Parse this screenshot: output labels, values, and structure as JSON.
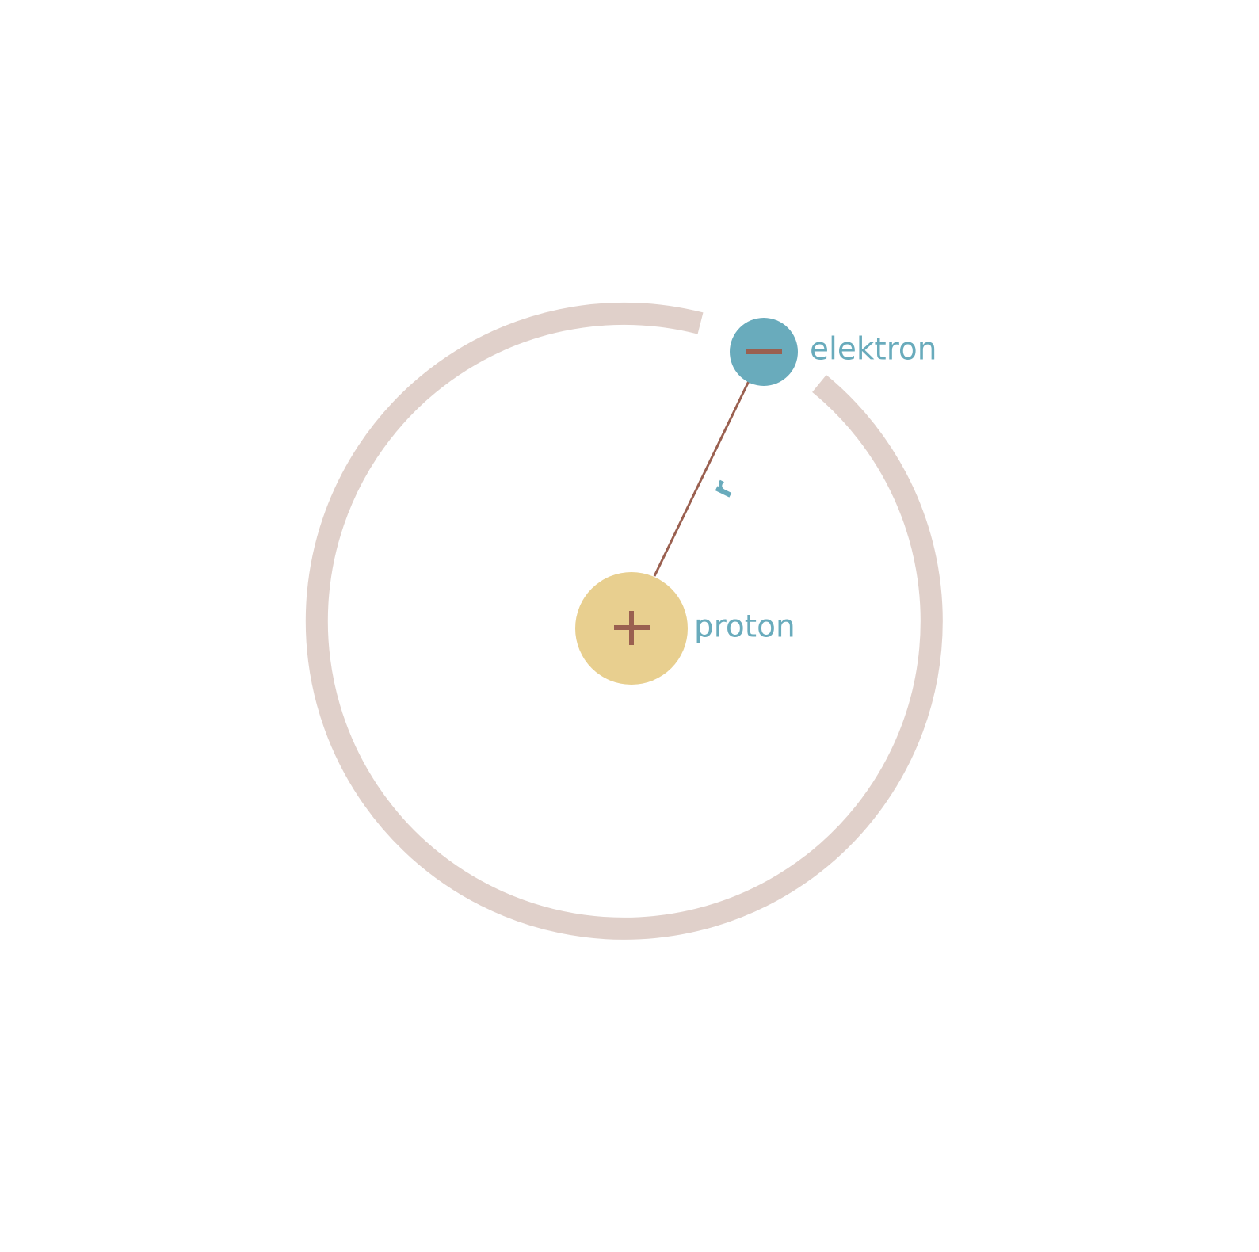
{
  "diagram": {
    "electron_label": "elektron",
    "proton_label": "proton",
    "radius_label": "r",
    "electron_sign": "−",
    "proton_sign": "+"
  },
  "colors": {
    "background": "#ffffff",
    "orbit": "#e0d0ca",
    "electron": "#69abbc",
    "proton": "#e8cf8f",
    "sign": "#9a6050",
    "radius_line": "#9a6050",
    "label_text": "#69abbc"
  },
  "icons": {
    "electron": "electron-circle-icon",
    "proton": "proton-circle-icon"
  }
}
